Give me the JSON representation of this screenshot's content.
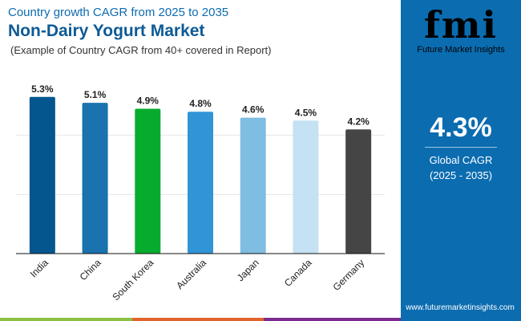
{
  "header": {
    "subtitle": "Country growth CAGR from 2025 to 2035",
    "title": "Non-Dairy Yogurt Market",
    "note": "(Example of Country CAGR from 40+ covered in Report)"
  },
  "brand": {
    "logo_text": "fmi",
    "name": "Future Market Insights",
    "url": "www.futuremarketinsights.com",
    "color": "#0b6cb0"
  },
  "summary": {
    "value": "4.3%",
    "label": "Global CAGR",
    "period": "(2025 - 2035)"
  },
  "chart_data": {
    "type": "bar",
    "categories": [
      "India",
      "China",
      "South Korea",
      "Australia",
      "Japan",
      "Canada",
      "Germany"
    ],
    "values": [
      5.3,
      5.1,
      4.9,
      4.8,
      4.6,
      4.5,
      4.2
    ],
    "labels": [
      "5.3%",
      "5.1%",
      "4.9%",
      "4.8%",
      "4.6%",
      "4.5%",
      "4.2%"
    ],
    "colors": [
      "#04568e",
      "#1a72ae",
      "#07ac2e",
      "#3194d6",
      "#80bde2",
      "#c4e2f3",
      "#454545"
    ],
    "ylim": [
      0,
      6
    ],
    "grid": true,
    "title": "",
    "xlabel": "",
    "ylabel": ""
  }
}
